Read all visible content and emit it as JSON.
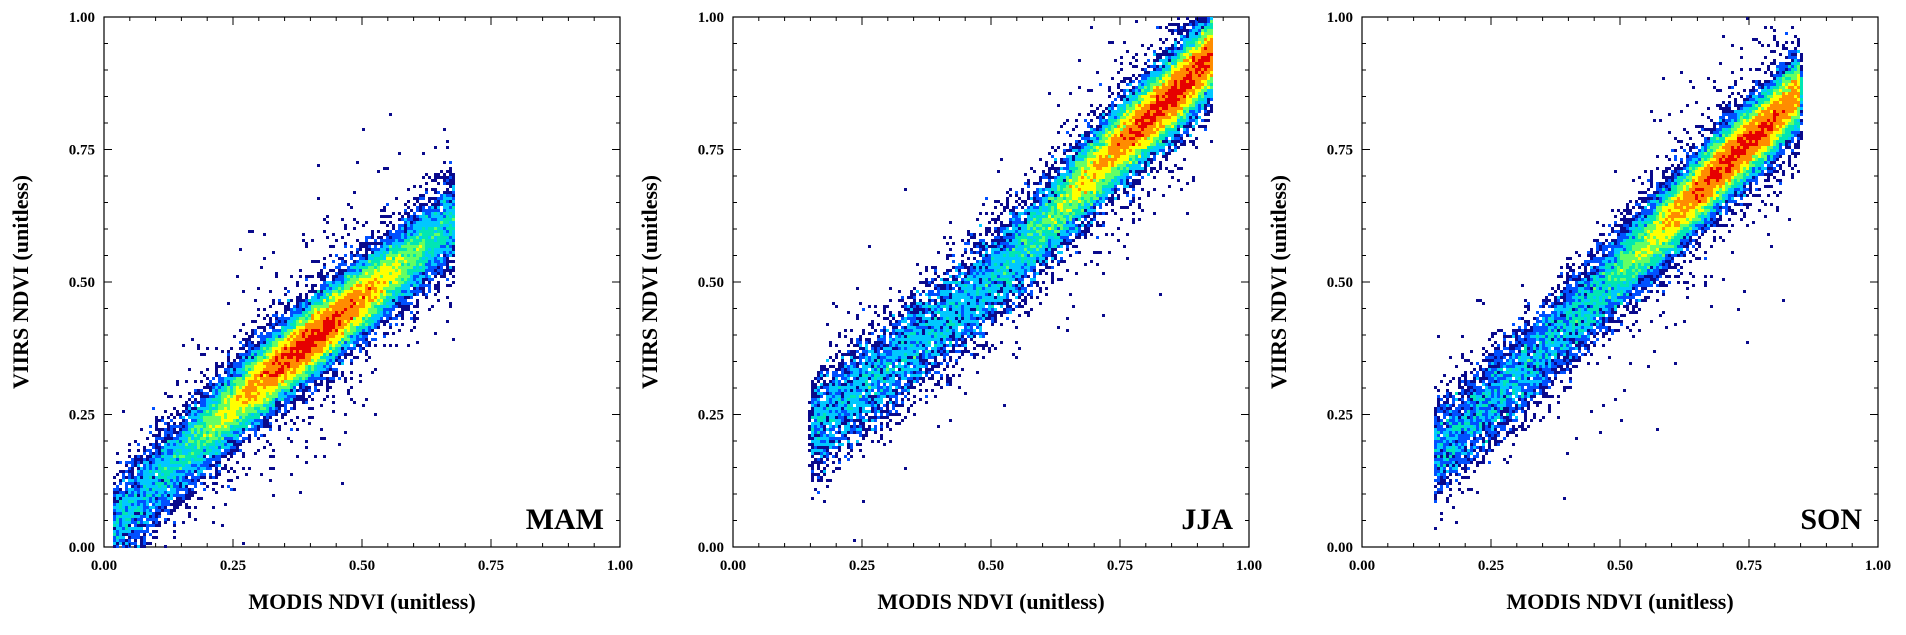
{
  "chart_data": [
    {
      "type": "scatter",
      "panel_label": "MAM",
      "xlabel": "MODIS NDVI (unitless)",
      "ylabel": "VIIRS NDVI (unitless)",
      "xlim": [
        0,
        1
      ],
      "ylim": [
        0,
        1
      ],
      "xticks": [
        "0.00",
        "0.25",
        "0.50",
        "0.75",
        "1.00"
      ],
      "yticks": [
        "0.00",
        "0.25",
        "0.50",
        "0.75",
        "1.00"
      ],
      "density_ridge": {
        "x": [
          0.12,
          0.2,
          0.3,
          0.4,
          0.5,
          0.6,
          0.66
        ],
        "y": [
          0.14,
          0.22,
          0.31,
          0.39,
          0.47,
          0.55,
          0.6
        ]
      },
      "peak_density_at": {
        "x": 0.4,
        "y": 0.38
      },
      "x_extent": [
        0.02,
        0.68
      ],
      "grid": false,
      "colormap": [
        "#c8c8d2",
        "#0a0a8c",
        "#0050ff",
        "#00c8ff",
        "#00e6b4",
        "#64ff64",
        "#ffff00",
        "#ff8c00",
        "#e60000"
      ]
    },
    {
      "type": "scatter",
      "panel_label": "JJA",
      "xlabel": "MODIS NDVI (unitless)",
      "ylabel": "VIIRS NDVI (unitless)",
      "xlim": [
        0,
        1
      ],
      "ylim": [
        0,
        1
      ],
      "xticks": [
        "0.00",
        "0.25",
        "0.50",
        "0.75",
        "1.00"
      ],
      "yticks": [
        "0.00",
        "0.25",
        "0.50",
        "0.75",
        "1.00"
      ],
      "density_ridge": {
        "x": [
          0.25,
          0.4,
          0.55,
          0.68,
          0.76,
          0.84,
          0.92
        ],
        "y": [
          0.3,
          0.42,
          0.55,
          0.69,
          0.77,
          0.84,
          0.92
        ]
      },
      "peak_density_at": {
        "x": 0.86,
        "y": 0.86
      },
      "x_extent": [
        0.15,
        0.93
      ],
      "grid": false,
      "colormap": [
        "#c8c8d2",
        "#0a0a8c",
        "#0050ff",
        "#00c8ff",
        "#00e6b4",
        "#64ff64",
        "#ffff00",
        "#ff8c00",
        "#e60000"
      ]
    },
    {
      "type": "scatter",
      "panel_label": "SON",
      "xlabel": "MODIS NDVI (unitless)",
      "ylabel": "VIIRS NDVI (unitless)",
      "xlim": [
        0,
        1
      ],
      "ylim": [
        0,
        1
      ],
      "xticks": [
        "0.00",
        "0.25",
        "0.50",
        "0.75",
        "1.00"
      ],
      "yticks": [
        "0.00",
        "0.25",
        "0.50",
        "0.75",
        "1.00"
      ],
      "density_ridge": {
        "x": [
          0.22,
          0.35,
          0.48,
          0.6,
          0.7,
          0.78,
          0.84
        ],
        "y": [
          0.25,
          0.37,
          0.5,
          0.62,
          0.72,
          0.79,
          0.85
        ]
      },
      "peak_density_at": {
        "x": 0.73,
        "y": 0.75
      },
      "x_extent": [
        0.14,
        0.85
      ],
      "grid": false,
      "colormap": [
        "#c8c8d2",
        "#0a0a8c",
        "#0050ff",
        "#00c8ff",
        "#00e6b4",
        "#64ff64",
        "#ffff00",
        "#ff8c00",
        "#e60000"
      ]
    }
  ]
}
